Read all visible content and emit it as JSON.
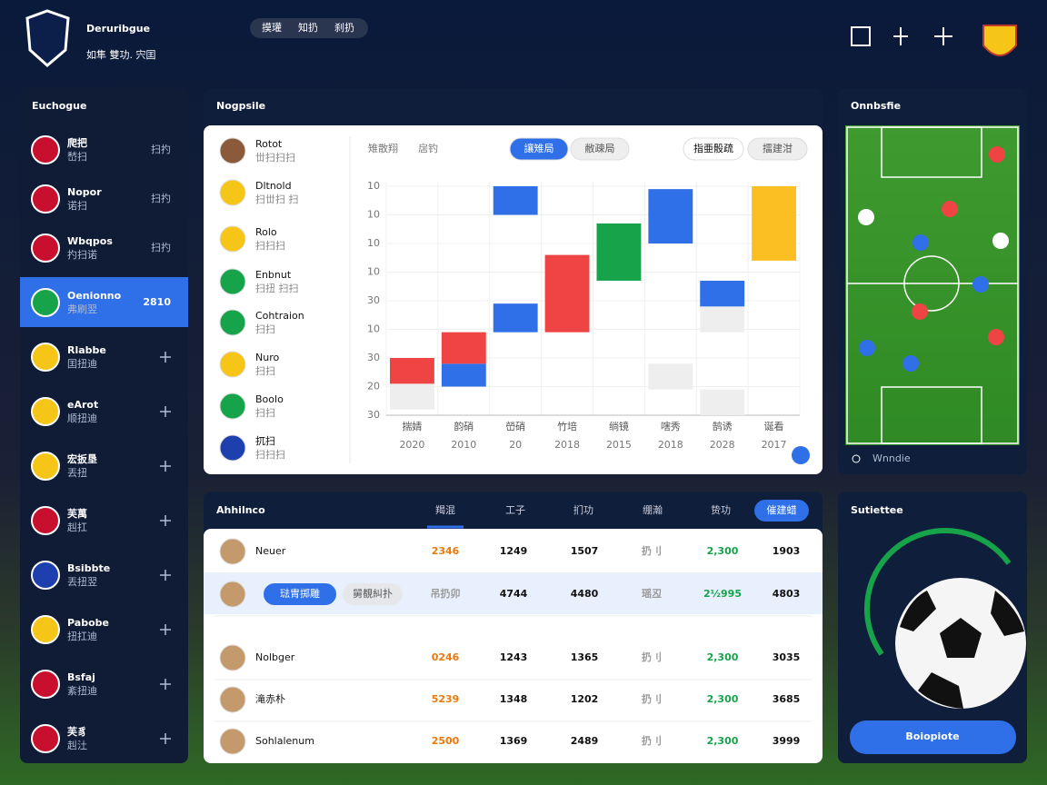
{
  "header": {
    "title": "Deruribgue",
    "subtitle": "如隼 雙功. 宍囯",
    "tabs": [
      "摸瓘",
      "知扔",
      "刹扔"
    ]
  },
  "sidebar": {
    "title": "Euchogue",
    "items": [
      {
        "name": "爬把",
        "sub": "嵆扫",
        "value": "扫扚"
      },
      {
        "name": "Nopor",
        "sub": "诺扫",
        "value": "扫扚"
      },
      {
        "name": "Wbqpos",
        "sub": "扚扫诺",
        "value": "扫扚"
      },
      {
        "name": "Oenionno",
        "sub": "弗刷翌",
        "value": "2810"
      },
      {
        "name": "Rlabbe",
        "sub": "囯扭迪"
      },
      {
        "name": "eArot",
        "sub": "顺扭迪"
      },
      {
        "name": "宏扳垦",
        "sub": "丟扭"
      },
      {
        "name": "芙萬",
        "sub": "赳扛"
      },
      {
        "name": "Bsibbte",
        "sub": "丟扭翌"
      },
      {
        "name": "Pabobe",
        "sub": "扭扛迪"
      },
      {
        "name": "Bsfaj",
        "sub": "紊扭迪"
      },
      {
        "name": "芙豸",
        "sub": "赳汢"
      }
    ]
  },
  "chart_panel": {
    "title": "Nogpsile",
    "players": [
      {
        "name": "Rotot",
        "sub": "丗扫扫扫"
      },
      {
        "name": "Dltnold",
        "sub": "扫丗扫 扫"
      },
      {
        "name": "Rolo",
        "sub": "扫扫扫"
      },
      {
        "name": "Enbnut",
        "sub": "扫扭 扫扫"
      },
      {
        "name": "Cohtraion",
        "sub": "扫扫"
      },
      {
        "name": "Nuro",
        "sub": "扫扫"
      },
      {
        "name": "Boolo",
        "sub": "扫扫"
      },
      {
        "name": "扤扫",
        "sub": "扫扫扫"
      }
    ],
    "filters": [
      "雉散翔",
      "扂钓"
    ],
    "buttons": [
      "讓雉局",
      "敝疎局",
      "指亜骰疏",
      "擂建泔"
    ],
    "chart": {
      "type": "floating-bar",
      "ylim": [
        0,
        8
      ],
      "yticks": [
        {
          "value": 8,
          "label": "10"
        },
        {
          "value": 7,
          "label": "10"
        },
        {
          "value": 6,
          "label": "10"
        },
        {
          "value": 5,
          "label": "10"
        },
        {
          "value": 4,
          "label": "30"
        },
        {
          "value": 3,
          "label": "10"
        },
        {
          "value": 2,
          "label": "30"
        },
        {
          "value": 1,
          "label": "20"
        },
        {
          "value": 0,
          "label": "30"
        }
      ],
      "categories": [
        "揣婧",
        "韵硝",
        "嵤硝",
        "竹培",
        "绱镜",
        "嗐秀",
        "鹄诱",
        "诞看"
      ],
      "years": [
        "2020",
        "2010",
        "20",
        "2018",
        "2015",
        "2018",
        "2028",
        "2017"
      ],
      "segments": [
        [
          {
            "low": 0.2,
            "high": 1.1,
            "color": "#eeeeee"
          },
          {
            "low": 1.1,
            "high": 2.0,
            "color": "#ef4444"
          }
        ],
        [
          {
            "low": 1.0,
            "high": 1.8,
            "color": "#2f6fe8"
          },
          {
            "low": 1.8,
            "high": 2.9,
            "color": "#ef4444"
          }
        ],
        [
          {
            "low": 2.9,
            "high": 3.9,
            "color": "#2f6fe8"
          },
          {
            "low": 7.0,
            "high": 8.0,
            "color": "#2f6fe8"
          }
        ],
        [
          {
            "low": 2.9,
            "high": 5.6,
            "color": "#ef4444"
          }
        ],
        [
          {
            "low": 4.7,
            "high": 6.7,
            "color": "#16a34a"
          }
        ],
        [
          {
            "low": 0.9,
            "high": 1.8,
            "color": "#eeeeee"
          },
          {
            "low": 6.0,
            "high": 7.9,
            "color": "#2f6fe8"
          }
        ],
        [
          {
            "low": 0.0,
            "high": 0.9,
            "color": "#eeeeee"
          },
          {
            "low": 2.9,
            "high": 3.8,
            "color": "#eeeeee"
          },
          {
            "low": 3.8,
            "high": 4.7,
            "color": "#2f6fe8"
          }
        ],
        [
          {
            "low": 5.4,
            "high": 8.0,
            "color": "#fbbf24"
          }
        ]
      ]
    }
  },
  "pitch_panel": {
    "title": "Onnbsfie",
    "search": "Wnndie"
  },
  "table_panel": {
    "title": "Ahhilnco",
    "columns": [
      "羯混",
      "工子",
      "扪功",
      "绷瀚",
      "贽功"
    ],
    "action": "催建蜡",
    "row_buttons": [
      "琺胄掷雕",
      "舅覩糾扑"
    ],
    "rows": [
      {
        "name": "Neuer",
        "cells": [
          "2346",
          "1249",
          "1507",
          "扔刂",
          "2,300",
          "1903"
        ]
      },
      {
        "cells": [
          "吊扔卯",
          "4744",
          "4480",
          "瑶丒",
          "2½995",
          "4803"
        ]
      },
      {
        "name": "Nolbger",
        "cells": [
          "0246",
          "1243",
          "1365",
          "扔刂",
          "2,300",
          "3035"
        ]
      },
      {
        "name": "滝赤朴",
        "cells": [
          "5239",
          "1348",
          "1202",
          "扔刂",
          "2,300",
          "3685"
        ]
      },
      {
        "name": "Sohlalenum",
        "cells": [
          "2500",
          "1369",
          "2489",
          "扔刂",
          "2,300",
          "3999"
        ]
      }
    ]
  },
  "stats_panel": {
    "title": "Sutiettee",
    "button": "Boiopiote"
  }
}
